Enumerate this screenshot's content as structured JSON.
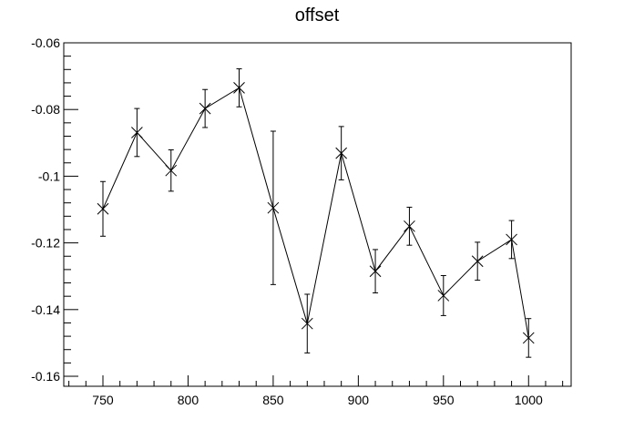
{
  "chart_data": {
    "type": "scatter",
    "title": "offset",
    "xlabel": "",
    "ylabel": "",
    "xlim": [
      727,
      1025
    ],
    "ylim": [
      -0.163,
      -0.06
    ],
    "x_ticks": [
      750,
      800,
      850,
      900,
      950,
      1000
    ],
    "x_tick_labels": [
      "750",
      "800",
      "850",
      "900",
      "950",
      "1000"
    ],
    "y_ticks": [
      -0.06,
      -0.08,
      -0.1,
      -0.12,
      -0.14,
      -0.16
    ],
    "y_tick_labels": [
      "-0.06",
      "-0.08",
      "-0.1",
      "-0.12",
      "-0.14",
      "-0.16"
    ],
    "grid": false,
    "marker": "x",
    "line_color": "#000000",
    "series": [
      {
        "x": [
          750,
          770,
          790,
          810,
          830,
          850,
          870,
          890,
          910,
          930,
          950,
          970,
          990,
          1000
        ],
        "y": [
          -0.1098,
          -0.0869,
          -0.0983,
          -0.0797,
          -0.0735,
          -0.1095,
          -0.1442,
          -0.0931,
          -0.1285,
          -0.115,
          -0.1358,
          -0.1255,
          -0.119,
          -0.1485
        ],
        "err": [
          0.0082,
          0.0072,
          0.0062,
          0.0057,
          0.0057,
          0.023,
          0.0088,
          0.008,
          0.0065,
          0.0057,
          0.006,
          0.0057,
          0.0057,
          0.0058
        ]
      }
    ]
  }
}
